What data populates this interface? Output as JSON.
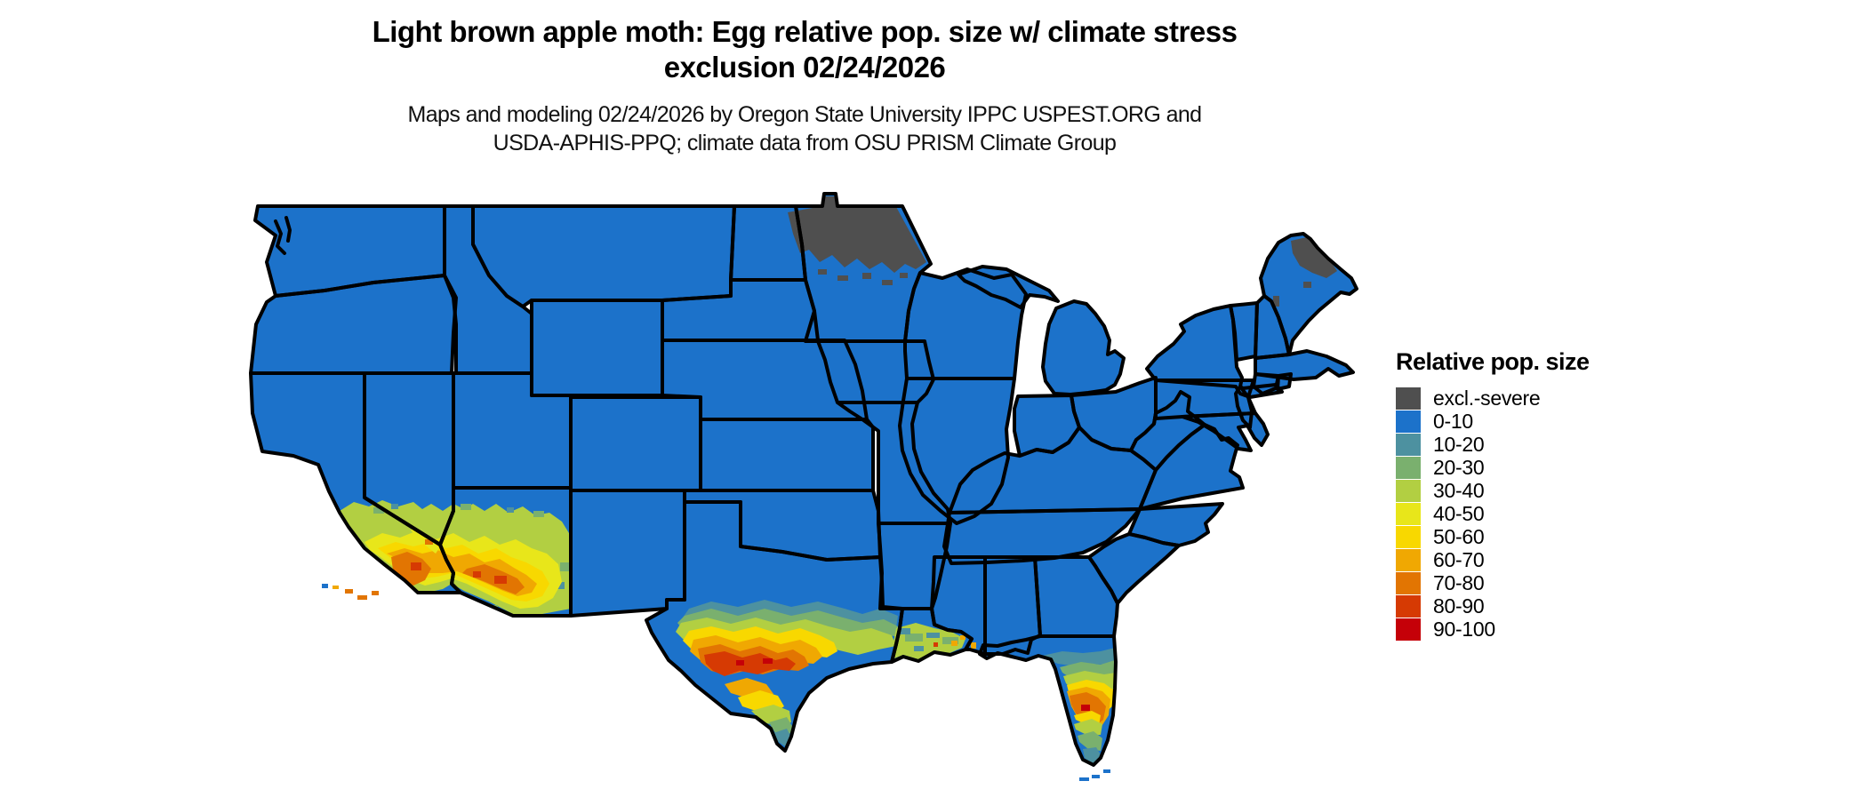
{
  "header": {
    "title_line1": "Light brown apple moth: Egg relative pop. size w/ climate stress",
    "title_line2": "exclusion 02/24/2026",
    "subtitle_line1": "Maps and modeling 02/24/2026 by Oregon State University IPPC USPEST.ORG and",
    "subtitle_line2": "USDA-APHIS-PPQ; climate data from OSU PRISM Climate Group"
  },
  "legend": {
    "title": "Relative pop. size",
    "items": [
      {
        "label": "excl.-severe",
        "color": "#4f4f4f"
      },
      {
        "label": "0-10",
        "color": "#1c72ca"
      },
      {
        "label": "10-20",
        "color": "#4d91a0"
      },
      {
        "label": "20-30",
        "color": "#7ab06e"
      },
      {
        "label": "30-40",
        "color": "#b2cf42"
      },
      {
        "label": "40-50",
        "color": "#e8e61a"
      },
      {
        "label": "50-60",
        "color": "#f8d800"
      },
      {
        "label": "60-70",
        "color": "#f0a802"
      },
      {
        "label": "70-80",
        "color": "#e27502"
      },
      {
        "label": "80-90",
        "color": "#d63a03"
      },
      {
        "label": "90-100",
        "color": "#c50008"
      }
    ]
  },
  "map": {
    "base_color": "#1c72ca",
    "border_color": "#000000",
    "background_color": "#ffffff",
    "region": "Contiguous United States"
  }
}
